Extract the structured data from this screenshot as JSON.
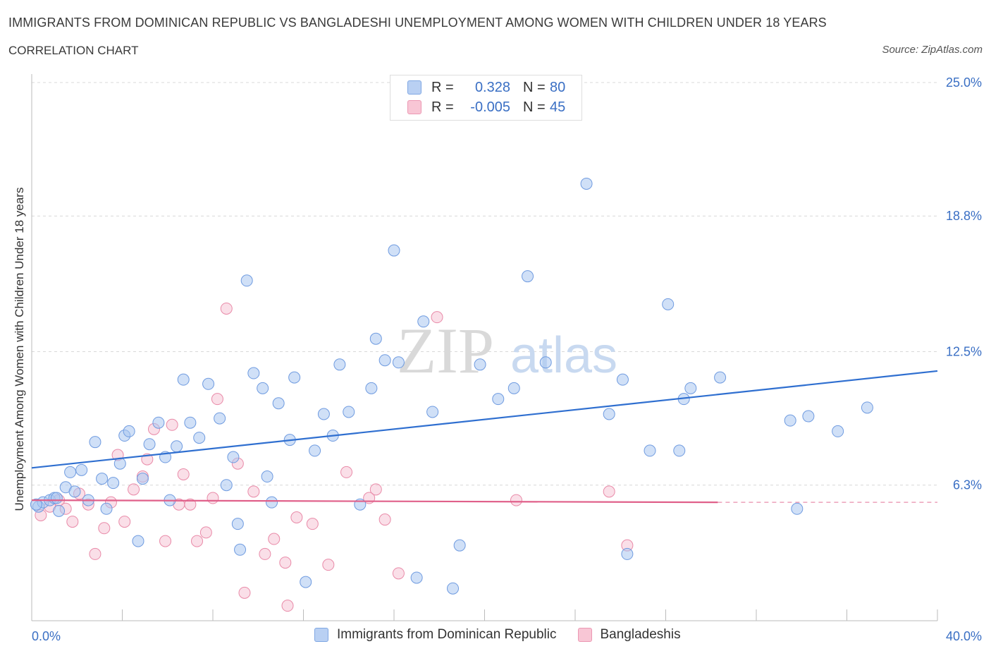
{
  "header": {
    "title": "IMMIGRANTS FROM DOMINICAN REPUBLIC VS BANGLADESHI UNEMPLOYMENT AMONG WOMEN WITH CHILDREN UNDER 18 YEARS",
    "subtitle": "CORRELATION CHART",
    "source": "Source: ZipAtlas.com"
  },
  "legend": {
    "rows": [
      {
        "r_label": "R =",
        "r_value": "0.328",
        "n_label": "N =",
        "n_value": "80",
        "color": "#a9c6f0"
      },
      {
        "r_label": "R =",
        "r_value": "-0.005",
        "n_label": "N =",
        "n_value": "45",
        "color": "#f5b7cb"
      }
    ]
  },
  "bottom_legend": {
    "items": [
      {
        "label": "Immigrants from Dominican Republic",
        "color": "#a9c6f0"
      },
      {
        "label": "Bangladeshis",
        "color": "#f5b7cb"
      }
    ]
  },
  "watermark": {
    "zip": "ZIP",
    "atlas": "atlas"
  },
  "chart_data": {
    "type": "scatter",
    "ylabel": "Unemployment Among Women with Children Under 18 years",
    "xlim": [
      0,
      40
    ],
    "ylim": [
      0,
      25
    ],
    "x_tick_labels": [
      {
        "value": 0,
        "label": "0.0%"
      },
      {
        "value": 40,
        "label": "40.0%"
      }
    ],
    "y_tick_labels": [
      {
        "value": 25.0,
        "label": "25.0%"
      },
      {
        "value": 18.8,
        "label": "18.8%"
      },
      {
        "value": 12.5,
        "label": "12.5%"
      },
      {
        "value": 6.3,
        "label": "6.3%"
      }
    ],
    "grid": true,
    "colors": {
      "blue_fill": "#a9c6f0",
      "blue_stroke": "#6f9be0",
      "blue_line": "#2f6fd0",
      "pink_fill": "#f5b7cb",
      "pink_stroke": "#e98aa8",
      "pink_line": "#e0608a",
      "axis_text": "#3a6fc4"
    },
    "series": [
      {
        "name": "Immigrants from Dominican Republic",
        "trend": {
          "x0": 0,
          "y0": 7.1,
          "x1": 40,
          "y1": 11.6
        },
        "points": [
          [
            0.3,
            5.3
          ],
          [
            0.5,
            5.5
          ],
          [
            0.8,
            5.6
          ],
          [
            1.0,
            5.7
          ],
          [
            1.2,
            5.1
          ],
          [
            1.5,
            6.2
          ],
          [
            1.7,
            6.9
          ],
          [
            1.9,
            6.0
          ],
          [
            2.2,
            7.0
          ],
          [
            2.5,
            5.6
          ],
          [
            2.8,
            8.3
          ],
          [
            3.1,
            6.6
          ],
          [
            3.3,
            5.2
          ],
          [
            3.6,
            6.4
          ],
          [
            3.9,
            7.3
          ],
          [
            4.1,
            8.6
          ],
          [
            4.3,
            8.8
          ],
          [
            4.7,
            3.7
          ],
          [
            4.9,
            6.6
          ],
          [
            5.2,
            8.2
          ],
          [
            5.6,
            9.2
          ],
          [
            5.9,
            7.6
          ],
          [
            6.1,
            5.6
          ],
          [
            6.4,
            8.1
          ],
          [
            6.7,
            11.2
          ],
          [
            7.0,
            9.2
          ],
          [
            7.4,
            8.5
          ],
          [
            7.8,
            11.0
          ],
          [
            8.3,
            9.4
          ],
          [
            8.6,
            6.3
          ],
          [
            8.9,
            7.6
          ],
          [
            9.1,
            4.5
          ],
          [
            9.2,
            3.3
          ],
          [
            9.5,
            15.8
          ],
          [
            9.8,
            11.5
          ],
          [
            10.2,
            10.8
          ],
          [
            10.4,
            6.7
          ],
          [
            10.6,
            5.5
          ],
          [
            10.9,
            10.1
          ],
          [
            11.4,
            8.4
          ],
          [
            11.6,
            11.3
          ],
          [
            12.1,
            1.8
          ],
          [
            12.5,
            7.9
          ],
          [
            12.9,
            9.6
          ],
          [
            13.3,
            8.6
          ],
          [
            13.6,
            11.9
          ],
          [
            14.0,
            9.7
          ],
          [
            14.5,
            5.4
          ],
          [
            15.0,
            10.8
          ],
          [
            15.2,
            13.1
          ],
          [
            15.6,
            12.1
          ],
          [
            16.0,
            17.2
          ],
          [
            16.2,
            12.0
          ],
          [
            17.0,
            2.0
          ],
          [
            17.3,
            13.9
          ],
          [
            17.7,
            9.7
          ],
          [
            18.6,
            1.5
          ],
          [
            18.9,
            3.5
          ],
          [
            19.8,
            11.9
          ],
          [
            20.6,
            10.3
          ],
          [
            21.3,
            10.8
          ],
          [
            21.9,
            16.0
          ],
          [
            22.7,
            12.0
          ],
          [
            24.5,
            20.3
          ],
          [
            25.5,
            9.6
          ],
          [
            26.1,
            11.2
          ],
          [
            26.3,
            3.1
          ],
          [
            27.3,
            7.9
          ],
          [
            28.1,
            14.7
          ],
          [
            28.6,
            7.9
          ],
          [
            28.8,
            10.3
          ],
          [
            29.1,
            10.8
          ],
          [
            30.4,
            11.3
          ],
          [
            33.5,
            9.3
          ],
          [
            33.8,
            5.2
          ],
          [
            34.3,
            9.5
          ],
          [
            35.6,
            8.8
          ],
          [
            36.9,
            9.9
          ],
          [
            1.1,
            5.7
          ],
          [
            0.2,
            5.4
          ]
        ]
      },
      {
        "name": "Bangladeshis",
        "trend": {
          "x0": 0,
          "y0": 5.6,
          "x1": 30.3,
          "y1": 5.5
        },
        "trend_dashed_to": {
          "x": 40,
          "y": 5.5
        },
        "points": [
          [
            0.4,
            4.9
          ],
          [
            0.8,
            5.3
          ],
          [
            1.2,
            5.6
          ],
          [
            1.5,
            5.2
          ],
          [
            1.8,
            4.6
          ],
          [
            2.1,
            5.9
          ],
          [
            2.5,
            5.4
          ],
          [
            2.8,
            3.1
          ],
          [
            3.2,
            4.3
          ],
          [
            3.5,
            5.5
          ],
          [
            3.8,
            7.7
          ],
          [
            4.1,
            4.6
          ],
          [
            4.5,
            6.1
          ],
          [
            4.9,
            6.7
          ],
          [
            5.1,
            7.5
          ],
          [
            5.4,
            8.9
          ],
          [
            5.9,
            3.7
          ],
          [
            6.2,
            9.1
          ],
          [
            6.5,
            5.4
          ],
          [
            6.7,
            6.8
          ],
          [
            7.0,
            5.4
          ],
          [
            7.3,
            3.7
          ],
          [
            7.7,
            4.1
          ],
          [
            8.0,
            5.7
          ],
          [
            8.2,
            10.3
          ],
          [
            8.6,
            14.5
          ],
          [
            9.1,
            7.3
          ],
          [
            9.4,
            1.3
          ],
          [
            9.8,
            6.0
          ],
          [
            10.3,
            3.1
          ],
          [
            10.7,
            3.8
          ],
          [
            11.2,
            2.7
          ],
          [
            11.3,
            0.7
          ],
          [
            11.7,
            4.8
          ],
          [
            12.4,
            4.5
          ],
          [
            13.1,
            2.6
          ],
          [
            13.9,
            6.9
          ],
          [
            14.9,
            5.7
          ],
          [
            15.2,
            6.1
          ],
          [
            15.6,
            4.7
          ],
          [
            16.2,
            2.2
          ],
          [
            17.9,
            14.1
          ],
          [
            21.4,
            5.6
          ],
          [
            25.5,
            6.0
          ],
          [
            26.3,
            3.5
          ]
        ]
      }
    ]
  }
}
